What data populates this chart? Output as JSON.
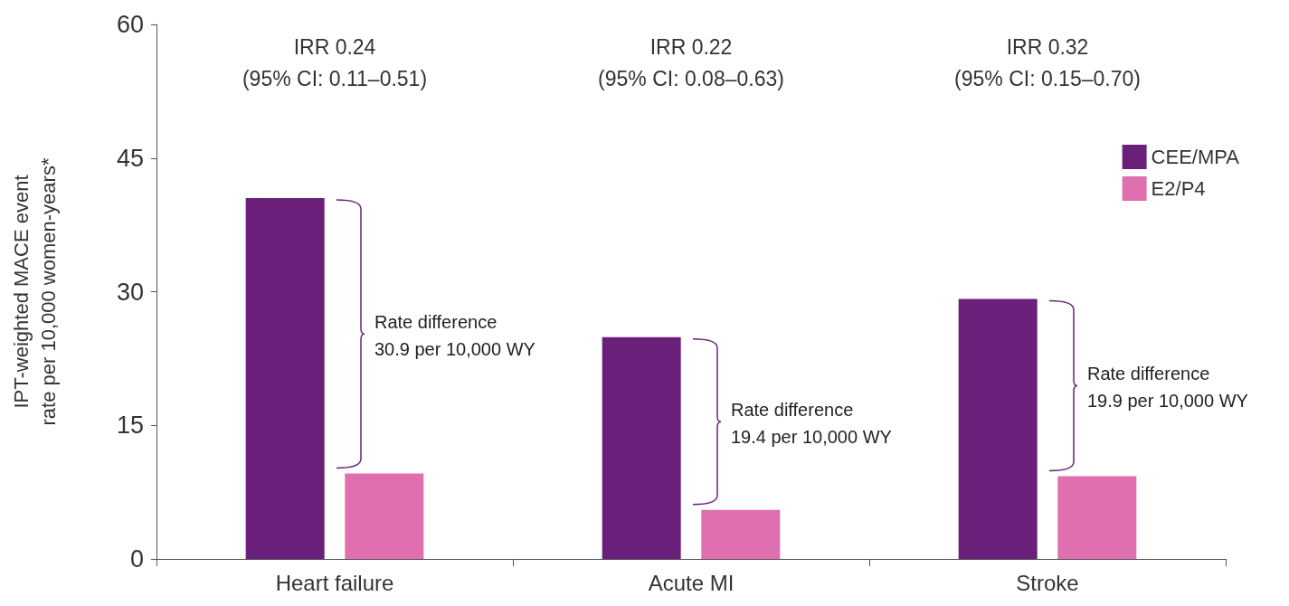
{
  "chart_data": {
    "type": "bar",
    "ylabel": "IPT-weighted MACE event\nrate per 10,000 women-years*",
    "categories": [
      "Heart failure",
      "Acute MI",
      "Stroke"
    ],
    "series": [
      {
        "name": "CEE/MPA",
        "color": "#6a1f7a",
        "values": [
          40.5,
          24.9,
          29.2
        ]
      },
      {
        "name": "E2/P4",
        "color": "#df6fae",
        "values": [
          9.6,
          5.5,
          9.3
        ]
      }
    ],
    "ylim": [
      0,
      60
    ],
    "yticks": [
      0,
      15,
      30,
      45,
      60
    ],
    "grid": false,
    "legend": "top right",
    "annotations": [
      "IRR 0.24\n(95% CI: 0.11–0.51)",
      "IRR 0.22\n(95% CI: 0.08–0.63)",
      "IRR 0.32\n(95% CI: 0.15–0.70)",
      "Rate difference\n30.9 per 10,000 WY",
      "Rate difference\n19.4 per 10,000 WY",
      "Rate difference\n19.9 per 10,000 WY"
    ]
  }
}
